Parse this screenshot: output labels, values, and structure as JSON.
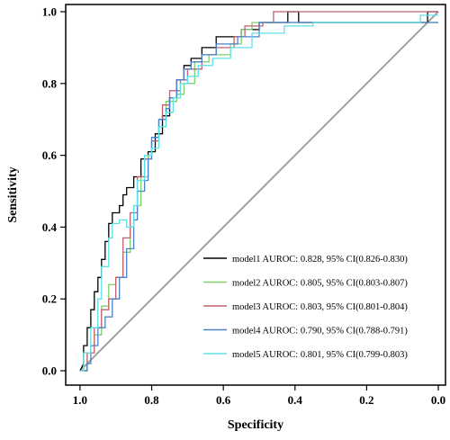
{
  "chart_data": {
    "type": "line",
    "title": "",
    "xlabel": "Specificity",
    "ylabel": "Sensitivity",
    "xlim": [
      1.04,
      -0.02
    ],
    "ylim": [
      -0.04,
      1.02
    ],
    "x_reversed": true,
    "x_ticks": [
      1.0,
      0.8,
      0.6,
      0.4,
      0.2,
      0.0
    ],
    "x_tick_labels": [
      "1.0",
      "0.8",
      "0.6",
      "0.4",
      "0.2",
      "0.0"
    ],
    "y_ticks": [
      0.0,
      0.2,
      0.4,
      0.6,
      0.8,
      1.0
    ],
    "y_tick_labels": [
      "0.0",
      "0.2",
      "0.4",
      "0.6",
      "0.8",
      "1.0"
    ],
    "grid": false,
    "legend_position": "bottom-right",
    "reference_line": {
      "from": [
        1.0,
        0.0
      ],
      "to": [
        0.0,
        1.0
      ],
      "color": "#A0A0A0"
    },
    "series": [
      {
        "name": "model1 AUROC: 0.828, 95% CI(0.826-0.830)",
        "color": "#000000",
        "x": [
          1.0,
          0.99,
          0.99,
          0.98,
          0.98,
          0.97,
          0.97,
          0.96,
          0.96,
          0.95,
          0.95,
          0.94,
          0.94,
          0.93,
          0.93,
          0.92,
          0.92,
          0.91,
          0.91,
          0.89,
          0.89,
          0.88,
          0.88,
          0.87,
          0.87,
          0.85,
          0.85,
          0.83,
          0.83,
          0.81,
          0.81,
          0.79,
          0.79,
          0.77,
          0.77,
          0.75,
          0.75,
          0.73,
          0.73,
          0.71,
          0.71,
          0.69,
          0.69,
          0.66,
          0.66,
          0.62,
          0.62,
          0.55,
          0.55,
          0.5,
          0.5,
          0.42,
          0.42,
          0.39,
          0.39,
          0.03,
          0.03,
          0.0
        ],
        "y": [
          0.0,
          0.02,
          0.07,
          0.07,
          0.12,
          0.12,
          0.17,
          0.17,
          0.22,
          0.22,
          0.26,
          0.26,
          0.31,
          0.31,
          0.36,
          0.36,
          0.41,
          0.41,
          0.44,
          0.44,
          0.46,
          0.46,
          0.49,
          0.49,
          0.51,
          0.51,
          0.54,
          0.54,
          0.59,
          0.59,
          0.61,
          0.61,
          0.66,
          0.66,
          0.71,
          0.71,
          0.76,
          0.76,
          0.81,
          0.81,
          0.85,
          0.85,
          0.87,
          0.87,
          0.9,
          0.9,
          0.93,
          0.93,
          0.95,
          0.95,
          0.97,
          0.97,
          1.0,
          1.0,
          0.97,
          0.97,
          1.0,
          1.0
        ]
      },
      {
        "name": "model2 AUROC: 0.805, 95% CI(0.803-0.807)",
        "color": "#7FCF6F",
        "x": [
          1.0,
          0.98,
          0.98,
          0.96,
          0.96,
          0.94,
          0.94,
          0.92,
          0.92,
          0.9,
          0.9,
          0.88,
          0.88,
          0.86,
          0.86,
          0.85,
          0.85,
          0.83,
          0.83,
          0.81,
          0.81,
          0.8,
          0.8,
          0.78,
          0.78,
          0.76,
          0.76,
          0.73,
          0.73,
          0.71,
          0.71,
          0.68,
          0.68,
          0.64,
          0.64,
          0.58,
          0.58,
          0.55,
          0.55,
          0.52,
          0.52,
          0.0
        ],
        "y": [
          0.0,
          0.0,
          0.05,
          0.05,
          0.1,
          0.1,
          0.18,
          0.18,
          0.24,
          0.24,
          0.26,
          0.26,
          0.33,
          0.33,
          0.4,
          0.4,
          0.46,
          0.46,
          0.54,
          0.54,
          0.6,
          0.6,
          0.64,
          0.64,
          0.68,
          0.68,
          0.75,
          0.75,
          0.77,
          0.77,
          0.8,
          0.8,
          0.86,
          0.86,
          0.88,
          0.88,
          0.91,
          0.91,
          0.95,
          0.95,
          0.97,
          0.97
        ]
      },
      {
        "name": "model3 AUROC: 0.803, 95% CI(0.801-0.804)",
        "color": "#C06070",
        "x": [
          1.0,
          0.98,
          0.98,
          0.96,
          0.96,
          0.94,
          0.94,
          0.92,
          0.92,
          0.9,
          0.9,
          0.88,
          0.88,
          0.86,
          0.86,
          0.84,
          0.84,
          0.82,
          0.82,
          0.8,
          0.8,
          0.78,
          0.78,
          0.77,
          0.77,
          0.75,
          0.75,
          0.72,
          0.72,
          0.7,
          0.7,
          0.66,
          0.66,
          0.62,
          0.62,
          0.57,
          0.57,
          0.54,
          0.54,
          0.49,
          0.49,
          0.46,
          0.46,
          0.0
        ],
        "y": [
          0.0,
          0.0,
          0.05,
          0.05,
          0.12,
          0.12,
          0.17,
          0.17,
          0.2,
          0.2,
          0.26,
          0.26,
          0.37,
          0.37,
          0.44,
          0.44,
          0.54,
          0.54,
          0.59,
          0.59,
          0.64,
          0.64,
          0.7,
          0.7,
          0.74,
          0.74,
          0.78,
          0.78,
          0.81,
          0.81,
          0.84,
          0.84,
          0.88,
          0.88,
          0.9,
          0.9,
          0.93,
          0.93,
          0.96,
          0.96,
          0.97,
          0.97,
          1.0,
          1.0
        ]
      },
      {
        "name": "model4 AUROC: 0.790, 95% CI(0.788-0.791)",
        "color": "#4B82C8",
        "x": [
          1.0,
          0.98,
          0.98,
          0.97,
          0.97,
          0.95,
          0.95,
          0.93,
          0.93,
          0.91,
          0.91,
          0.89,
          0.89,
          0.87,
          0.87,
          0.85,
          0.85,
          0.84,
          0.84,
          0.82,
          0.82,
          0.81,
          0.81,
          0.8,
          0.8,
          0.78,
          0.78,
          0.76,
          0.76,
          0.75,
          0.75,
          0.73,
          0.73,
          0.71,
          0.71,
          0.69,
          0.69,
          0.66,
          0.66,
          0.62,
          0.62,
          0.56,
          0.56,
          0.5,
          0.5,
          0.0
        ],
        "y": [
          0.0,
          0.0,
          0.02,
          0.02,
          0.07,
          0.07,
          0.12,
          0.12,
          0.15,
          0.15,
          0.2,
          0.2,
          0.26,
          0.26,
          0.34,
          0.34,
          0.42,
          0.42,
          0.5,
          0.5,
          0.53,
          0.53,
          0.59,
          0.59,
          0.65,
          0.65,
          0.7,
          0.7,
          0.73,
          0.73,
          0.76,
          0.76,
          0.81,
          0.81,
          0.84,
          0.84,
          0.86,
          0.86,
          0.88,
          0.88,
          0.91,
          0.91,
          0.93,
          0.93,
          0.97,
          0.97
        ]
      },
      {
        "name": "model5 AUROC: 0.801, 95% CI(0.799-0.803)",
        "color": "#5FE0E8",
        "x": [
          1.0,
          0.99,
          0.99,
          0.97,
          0.97,
          0.95,
          0.95,
          0.94,
          0.94,
          0.92,
          0.92,
          0.91,
          0.91,
          0.89,
          0.89,
          0.87,
          0.87,
          0.85,
          0.85,
          0.84,
          0.84,
          0.82,
          0.82,
          0.8,
          0.8,
          0.78,
          0.78,
          0.76,
          0.76,
          0.74,
          0.74,
          0.72,
          0.72,
          0.7,
          0.7,
          0.67,
          0.67,
          0.63,
          0.63,
          0.58,
          0.58,
          0.52,
          0.52,
          0.43,
          0.43,
          0.35,
          0.35,
          0.05,
          0.05,
          0.0
        ],
        "y": [
          0.0,
          0.0,
          0.05,
          0.05,
          0.12,
          0.12,
          0.2,
          0.2,
          0.29,
          0.29,
          0.37,
          0.37,
          0.41,
          0.41,
          0.42,
          0.42,
          0.4,
          0.4,
          0.46,
          0.46,
          0.53,
          0.53,
          0.6,
          0.6,
          0.62,
          0.62,
          0.68,
          0.68,
          0.72,
          0.72,
          0.76,
          0.76,
          0.8,
          0.8,
          0.82,
          0.82,
          0.85,
          0.85,
          0.87,
          0.87,
          0.9,
          0.9,
          0.94,
          0.94,
          0.96,
          0.96,
          0.97,
          0.97,
          0.99,
          0.99
        ]
      }
    ]
  }
}
